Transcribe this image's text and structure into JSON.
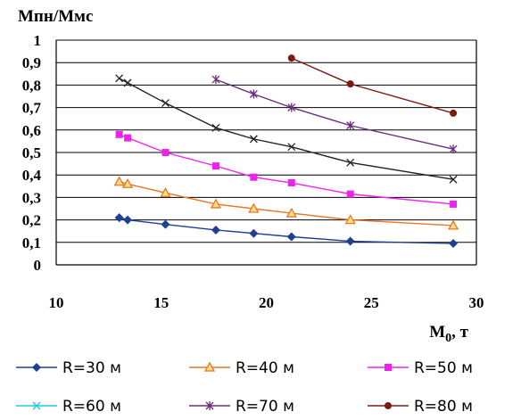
{
  "chart_data": {
    "type": "line",
    "ylabel": "Мпн/Ммс",
    "xlabel": "M",
    "xlabel_sub": "0",
    "xlabel_unit": ", т",
    "xlim": [
      10,
      30
    ],
    "ylim": [
      0,
      1
    ],
    "xticks": [
      "10",
      "15",
      "20",
      "25",
      "30"
    ],
    "yticks": [
      "0",
      "0,1",
      "0,2",
      "0,3",
      "0,4",
      "0,5",
      "0,6",
      "0,7",
      "0,8",
      "0,9",
      "1"
    ],
    "grid": "horizontal",
    "legend_position": "bottom",
    "series": [
      {
        "name": "R=30 м",
        "color": "#1f3f8f",
        "marker": "diamond",
        "points": [
          [
            13.0,
            0.21
          ],
          [
            13.4,
            0.2
          ],
          [
            15.2,
            0.18
          ],
          [
            17.6,
            0.155
          ],
          [
            19.4,
            0.14
          ],
          [
            21.2,
            0.125
          ],
          [
            24.0,
            0.105
          ],
          [
            28.9,
            0.095
          ]
        ]
      },
      {
        "name": "R=40 м",
        "color": "#e87722",
        "marker": "triangle",
        "points": [
          [
            13.0,
            0.37
          ],
          [
            13.4,
            0.36
          ],
          [
            15.2,
            0.32
          ],
          [
            17.6,
            0.27
          ],
          [
            19.4,
            0.25
          ],
          [
            21.2,
            0.23
          ],
          [
            24.0,
            0.2
          ],
          [
            28.9,
            0.175
          ]
        ]
      },
      {
        "name": "R=50 м",
        "color": "#ee22ee",
        "marker": "square",
        "points": [
          [
            13.0,
            0.58
          ],
          [
            13.4,
            0.565
          ],
          [
            15.2,
            0.5
          ],
          [
            17.6,
            0.44
          ],
          [
            19.4,
            0.39
          ],
          [
            21.2,
            0.365
          ],
          [
            24.0,
            0.315
          ],
          [
            28.9,
            0.27
          ]
        ]
      },
      {
        "name": "R=60 м",
        "color": "#1ecbe1",
        "marker": "x",
        "points": [
          [
            13.0,
            0.83
          ],
          [
            13.4,
            0.81
          ],
          [
            15.2,
            0.72
          ],
          [
            17.6,
            0.61
          ],
          [
            19.4,
            0.56
          ],
          [
            21.2,
            0.525
          ],
          [
            24.0,
            0.455
          ],
          [
            28.9,
            0.38
          ]
        ]
      },
      {
        "name": "R=70 м",
        "color": "#6b2a7f",
        "marker": "star",
        "points": [
          [
            17.6,
            0.825
          ],
          [
            19.4,
            0.76
          ],
          [
            21.2,
            0.7
          ],
          [
            24.0,
            0.62
          ],
          [
            28.9,
            0.515
          ]
        ]
      },
      {
        "name": "R=80 м",
        "color": "#7a1a12",
        "marker": "circle",
        "points": [
          [
            21.2,
            0.92
          ],
          [
            24.0,
            0.805
          ],
          [
            28.9,
            0.675
          ]
        ]
      }
    ]
  }
}
